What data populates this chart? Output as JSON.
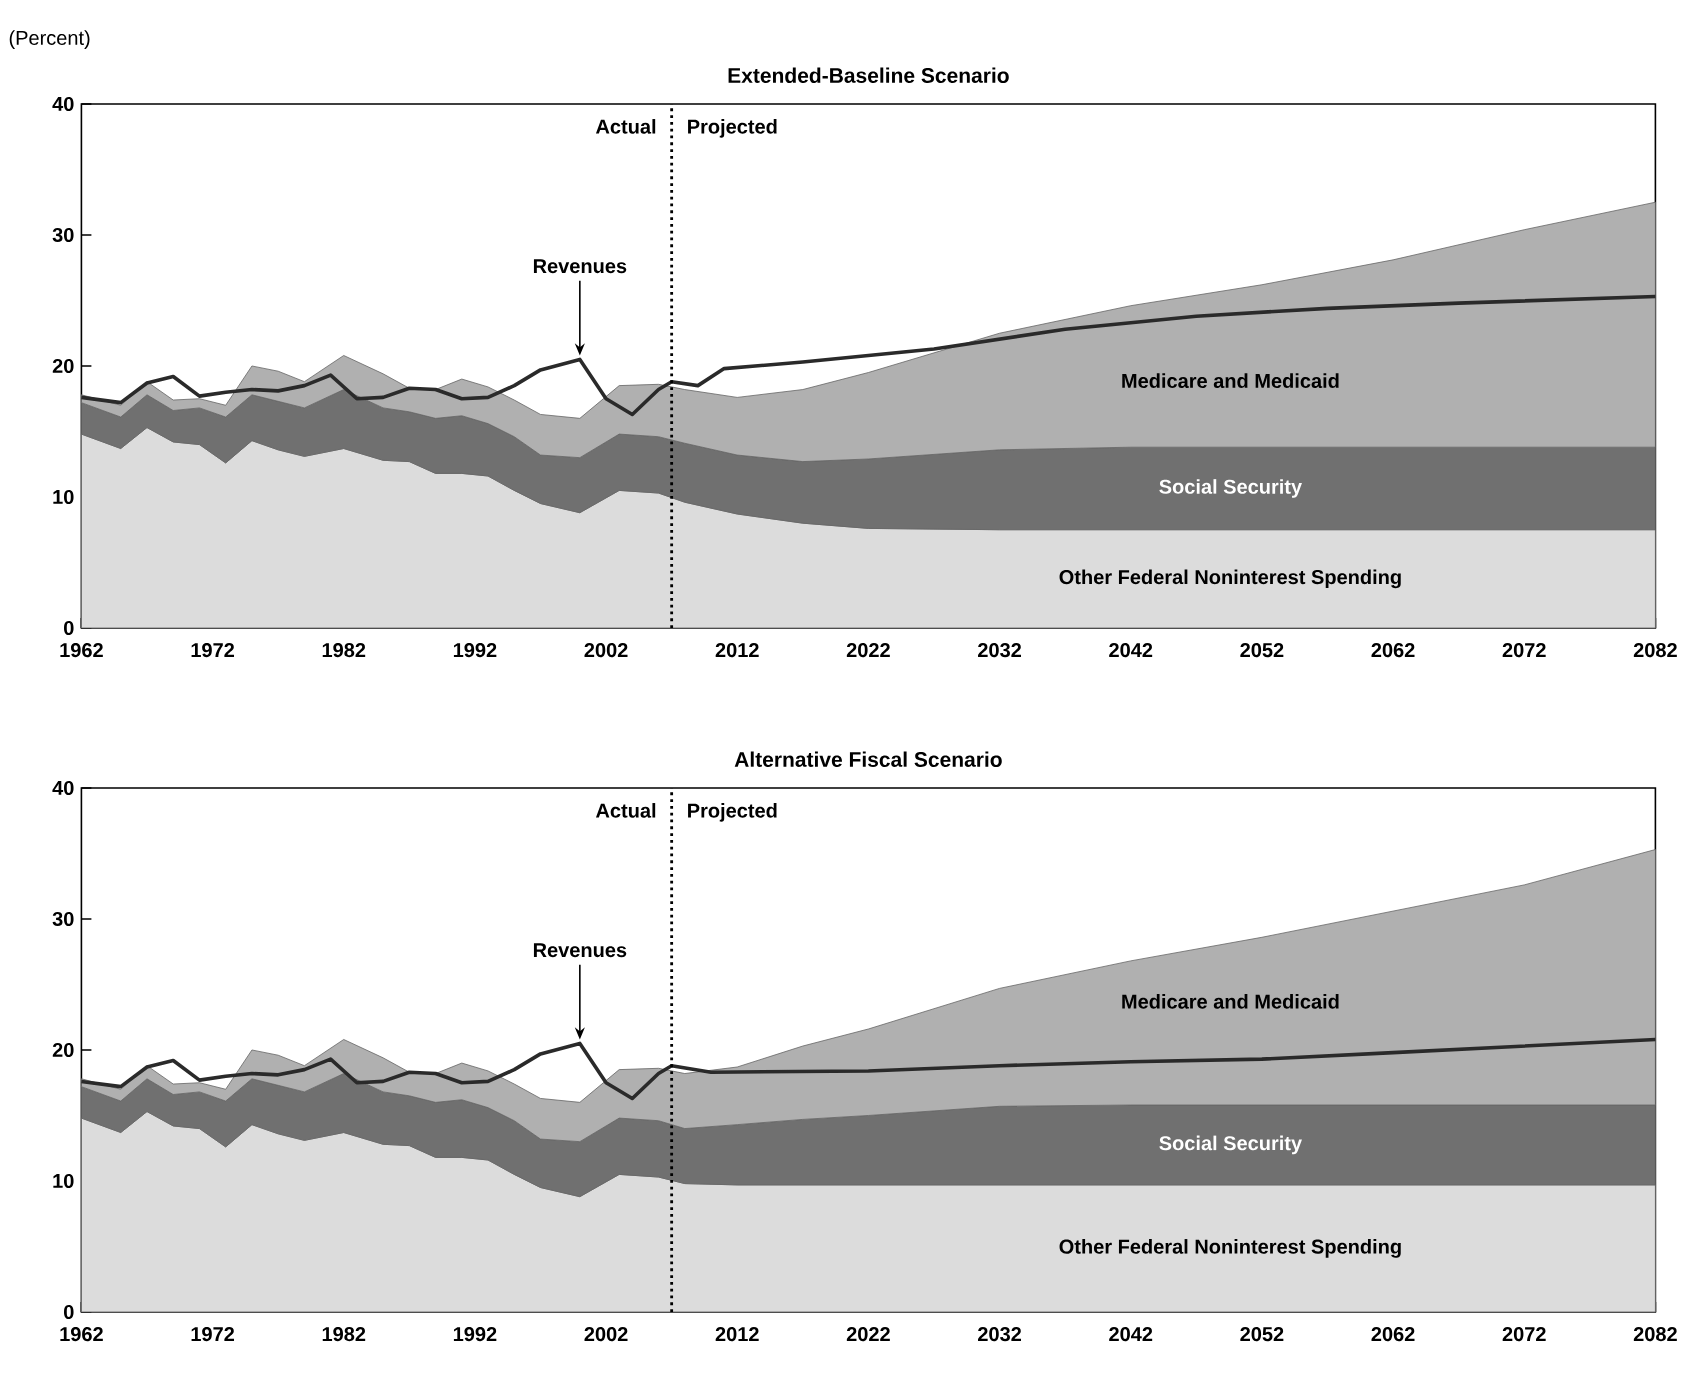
{
  "chart_data": [
    {
      "type": "area",
      "stacked": true,
      "title": "Extended-Baseline Scenario",
      "ylabel": "(Percent)",
      "x": [
        1962,
        1965,
        1967,
        1969,
        1971,
        1973,
        1975,
        1977,
        1979,
        1982,
        1985,
        1987,
        1989,
        1991,
        1993,
        1995,
        1997,
        2000,
        2003,
        2006,
        2008,
        2012,
        2017,
        2022,
        2032,
        2042,
        2052,
        2062,
        2072,
        2082
      ],
      "series": [
        {
          "name": "Other Federal Noninterest Spending",
          "color": "#dcdcdc",
          "values": [
            14.8,
            13.7,
            15.3,
            14.2,
            14.0,
            12.6,
            14.3,
            13.6,
            13.1,
            13.7,
            12.8,
            12.7,
            11.8,
            11.8,
            11.6,
            10.5,
            9.5,
            8.8,
            10.5,
            10.3,
            9.6,
            8.7,
            8.0,
            7.6,
            7.5,
            7.5,
            7.5,
            7.5,
            7.5,
            7.5
          ]
        },
        {
          "name": "Social Security",
          "color": "#707070",
          "values": [
            2.4,
            2.4,
            2.5,
            2.4,
            2.8,
            3.5,
            3.5,
            3.7,
            3.7,
            4.5,
            4.0,
            3.8,
            4.2,
            4.4,
            4.0,
            4.1,
            3.7,
            4.2,
            4.3,
            4.3,
            4.5,
            4.5,
            4.7,
            5.3,
            6.1,
            6.3,
            6.3,
            6.3,
            6.3,
            6.3
          ]
        },
        {
          "name": "Medicare and Medicaid",
          "color": "#b0b0b0",
          "values": [
            0.6,
            0.9,
            1.0,
            0.8,
            0.7,
            0.9,
            2.2,
            2.3,
            2.0,
            2.6,
            2.6,
            1.8,
            2.2,
            2.8,
            2.8,
            2.8,
            3.1,
            3.0,
            3.7,
            4.0,
            4.1,
            4.4,
            5.5,
            6.6,
            8.9,
            10.8,
            12.4,
            14.3,
            16.6,
            18.7
          ]
        },
        {
          "name": "Revenues",
          "type": "line",
          "color": "#2a2a2a",
          "x": [
            1962,
            1965,
            1967,
            1969,
            1971,
            1973,
            1975,
            1977,
            1979,
            1981,
            1983,
            1985,
            1987,
            1989,
            1991,
            1993,
            1995,
            1997,
            2000,
            2002,
            2004,
            2006,
            2007,
            2009,
            2011,
            2017,
            2027,
            2037,
            2047,
            2057,
            2067,
            2082
          ],
          "values": [
            17.6,
            17.2,
            18.7,
            19.2,
            17.7,
            18.0,
            18.2,
            18.1,
            18.5,
            19.3,
            17.5,
            17.6,
            18.3,
            18.2,
            17.5,
            17.6,
            18.5,
            19.7,
            20.5,
            17.5,
            16.3,
            18.2,
            18.8,
            18.5,
            19.8,
            20.3,
            21.3,
            22.8,
            23.8,
            24.4,
            24.8,
            25.3
          ]
        }
      ],
      "annotations": [
        "Actual",
        "Projected"
      ],
      "ref_lines": [
        {
          "axis": "x",
          "value": 2007,
          "line_style": "dotted",
          "color": "#000000"
        }
      ],
      "xlim": [
        1962,
        2082
      ],
      "ylim": [
        0,
        40
      ],
      "xticks": [
        1962,
        1972,
        1982,
        1992,
        2002,
        2012,
        2022,
        2032,
        2042,
        2052,
        2062,
        2072,
        2082
      ],
      "yticks": [
        0,
        10,
        20,
        30,
        40
      ]
    },
    {
      "type": "area",
      "stacked": true,
      "title": "Alternative Fiscal Scenario",
      "x": [
        1962,
        1965,
        1967,
        1969,
        1971,
        1973,
        1975,
        1977,
        1979,
        1982,
        1985,
        1987,
        1989,
        1991,
        1993,
        1995,
        1997,
        2000,
        2003,
        2006,
        2008,
        2012,
        2017,
        2022,
        2032,
        2042,
        2052,
        2062,
        2072,
        2082
      ],
      "series": [
        {
          "name": "Other Federal Noninterest Spending",
          "color": "#dcdcdc",
          "values": [
            14.8,
            13.7,
            15.3,
            14.2,
            14.0,
            12.6,
            14.3,
            13.6,
            13.1,
            13.7,
            12.8,
            12.7,
            11.8,
            11.8,
            11.6,
            10.5,
            9.5,
            8.8,
            10.5,
            10.3,
            9.8,
            9.7,
            9.7,
            9.7,
            9.7,
            9.7,
            9.7,
            9.7,
            9.7,
            9.7
          ]
        },
        {
          "name": "Social Security",
          "color": "#707070",
          "values": [
            2.4,
            2.4,
            2.5,
            2.4,
            2.8,
            3.5,
            3.5,
            3.7,
            3.7,
            4.5,
            4.0,
            3.8,
            4.2,
            4.4,
            4.0,
            4.1,
            3.7,
            4.2,
            4.3,
            4.3,
            4.2,
            4.6,
            5.0,
            5.3,
            6.0,
            6.1,
            6.1,
            6.1,
            6.1,
            6.1
          ]
        },
        {
          "name": "Medicare and Medicaid",
          "color": "#b0b0b0",
          "values": [
            0.6,
            0.9,
            1.0,
            0.8,
            0.7,
            0.9,
            2.2,
            2.3,
            2.0,
            2.6,
            2.6,
            1.8,
            2.2,
            2.8,
            2.8,
            2.8,
            3.1,
            3.0,
            3.7,
            4.0,
            4.2,
            4.4,
            5.6,
            6.6,
            9.0,
            11.0,
            12.8,
            14.8,
            16.8,
            19.5
          ]
        },
        {
          "name": "Revenues",
          "type": "line",
          "color": "#2a2a2a",
          "x": [
            1962,
            1965,
            1967,
            1969,
            1971,
            1973,
            1975,
            1977,
            1979,
            1981,
            1983,
            1985,
            1987,
            1989,
            1991,
            1993,
            1995,
            1997,
            2000,
            2002,
            2004,
            2006,
            2007,
            2010,
            2022,
            2032,
            2042,
            2052,
            2062,
            2072,
            2082
          ],
          "values": [
            17.6,
            17.2,
            18.7,
            19.2,
            17.7,
            18.0,
            18.2,
            18.1,
            18.5,
            19.3,
            17.5,
            17.6,
            18.3,
            18.2,
            17.5,
            17.6,
            18.5,
            19.7,
            20.5,
            17.5,
            16.3,
            18.2,
            18.8,
            18.3,
            18.4,
            18.8,
            19.1,
            19.3,
            19.8,
            20.3,
            20.8
          ]
        }
      ],
      "annotations": [
        "Actual",
        "Projected"
      ],
      "ref_lines": [
        {
          "axis": "x",
          "value": 2007,
          "line_style": "dotted",
          "color": "#000000"
        }
      ],
      "xlim": [
        1962,
        2082
      ],
      "ylim": [
        0,
        40
      ],
      "xticks": [
        1962,
        1972,
        1982,
        1992,
        2002,
        2012,
        2022,
        2032,
        2042,
        2052,
        2062,
        2072,
        2082
      ],
      "yticks": [
        0,
        10,
        20,
        30,
        40
      ]
    }
  ]
}
